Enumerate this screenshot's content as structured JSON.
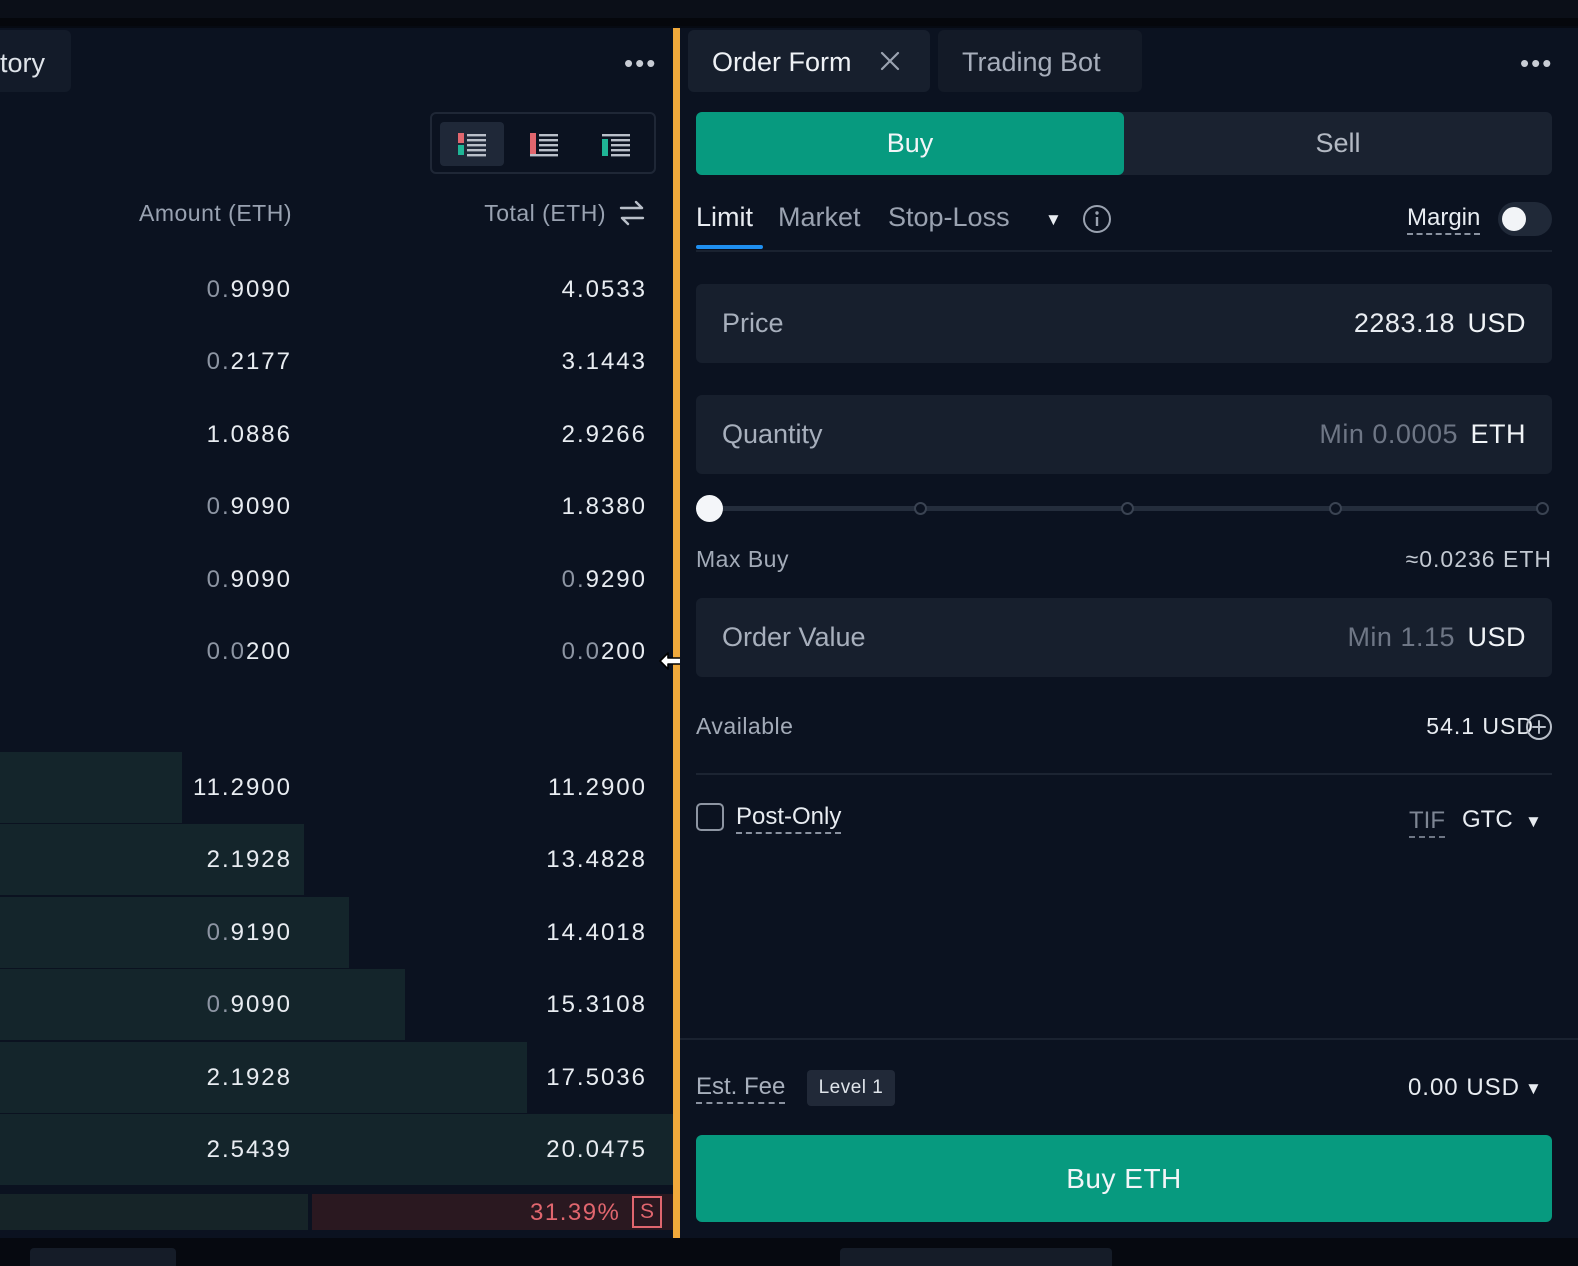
{
  "left_panel": {
    "tab_label": "tory",
    "more_label": "•••",
    "columns": {
      "amount": "Amount (ETH)",
      "total": "Total (ETH)"
    },
    "asks": [
      {
        "amount_dim": "0.",
        "amount": "9090",
        "total_dim": "",
        "total": "4.0533"
      },
      {
        "amount_dim": "0.",
        "amount": "2177",
        "total_dim": "",
        "total": "3.1443"
      },
      {
        "amount_dim": "",
        "amount": "1.0886",
        "total_dim": "",
        "total": "2.9266"
      },
      {
        "amount_dim": "0.",
        "amount": "9090",
        "total_dim": "",
        "total": "1.8380"
      },
      {
        "amount_dim": "0.",
        "amount": "9090",
        "total_dim": "0.",
        "total": "9290"
      },
      {
        "amount_dim": "0.0",
        "amount": "200",
        "total_dim": "0.0",
        "total": "200"
      }
    ],
    "bids": [
      {
        "amount_dim": "",
        "amount": "11.2900",
        "total": "11.2900",
        "depth": 0.2705
      },
      {
        "amount_dim": "",
        "amount": "2.1928",
        "total": "13.4828",
        "depth": 0.4521
      },
      {
        "amount_dim": "0.",
        "amount": "9190",
        "total": "14.4018",
        "depth": 0.5186
      },
      {
        "amount_dim": "0.",
        "amount": "9090",
        "total": "15.3108",
        "depth": 0.6017
      },
      {
        "amount_dim": "",
        "amount": "2.1928",
        "total": "17.5036",
        "depth": 0.783
      },
      {
        "amount_dim": "",
        "amount": "2.5439",
        "total": "20.0475",
        "depth": 1.0
      }
    ],
    "ratio": {
      "text": "31.39%",
      "side": "S",
      "buy_fraction": 0.46
    }
  },
  "right_panel": {
    "tabs": [
      {
        "label": "Order Form"
      },
      {
        "label": "Trading Bot"
      }
    ],
    "more_label": "•••",
    "buy_label": "Buy",
    "sell_label": "Sell",
    "order_types": [
      {
        "label": "Limit"
      },
      {
        "label": "Market"
      },
      {
        "label": "Stop-Loss"
      }
    ],
    "margin_label": "Margin",
    "price": {
      "label": "Price",
      "value": "2283.18",
      "unit": "USD"
    },
    "quantity": {
      "label": "Quantity",
      "placeholder": "Min 0.0005",
      "unit": "ETH"
    },
    "slider": {
      "value_percent": 0
    },
    "max_buy": {
      "label": "Max Buy",
      "value": "≈0.0236 ETH"
    },
    "order_value": {
      "label": "Order Value",
      "placeholder": "Min 1.15",
      "unit": "USD"
    },
    "available": {
      "label": "Available",
      "value": "54.1 USD"
    },
    "post_only_label": "Post-Only",
    "tif": {
      "label": "TIF",
      "value": "GTC"
    },
    "est_fee": {
      "label": "Est. Fee",
      "level": "Level 1",
      "value": "0.00 USD"
    },
    "submit_label": "Buy ETH"
  },
  "colors": {
    "accent_buy": "#079a7f",
    "divider": "#f0a93b",
    "ask_red": "#e1666e",
    "tab_underline": "#1f8ff0"
  }
}
